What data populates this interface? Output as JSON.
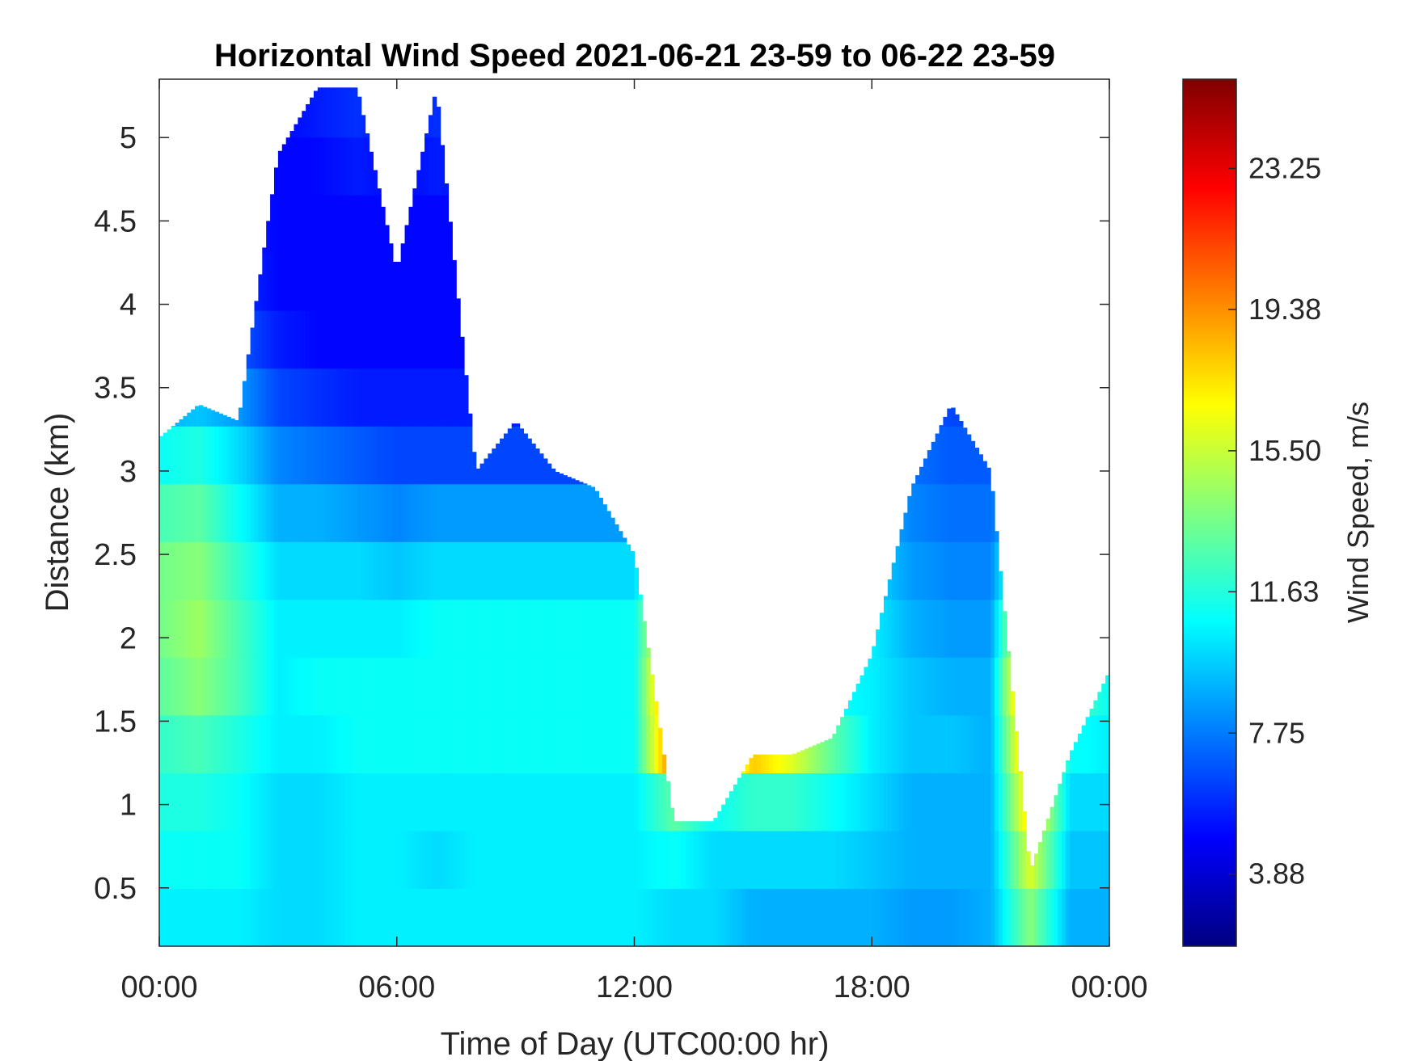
{
  "chart_data": {
    "type": "heatmap",
    "title": "Horizontal Wind Speed 2021-06-21 23-59 to 06-22 23-59",
    "xlabel": "Time of Day (UTC00:00 hr)",
    "ylabel": "Distance (km)",
    "colorbar_label": "Wind Speed, m/s",
    "x_ticks": [
      "00:00",
      "06:00",
      "12:00",
      "18:00",
      "00:00"
    ],
    "x_tick_hours": [
      0,
      6,
      12,
      18,
      24
    ],
    "xlim_hours": [
      0,
      24
    ],
    "y_ticks": [
      "0.5",
      "1",
      "1.5",
      "2",
      "2.5",
      "3",
      "3.5",
      "4",
      "4.5",
      "5"
    ],
    "y_tick_values": [
      0.5,
      1,
      1.5,
      2,
      2.5,
      3,
      3.5,
      4,
      4.5,
      5
    ],
    "ylim": [
      0.15,
      5.35
    ],
    "colorbar_ticks": [
      "3.88",
      "7.75",
      "11.63",
      "15.50",
      "19.38",
      "23.25"
    ],
    "colorbar_tick_values": [
      3.88,
      7.75,
      11.63,
      15.5,
      19.38,
      23.25
    ],
    "colorbar_range": [
      1.9,
      25.7
    ],
    "colormap": "jet",
    "missing_color": "#ffffff",
    "grid": false,
    "legend": "colorbar-right",
    "profiles": [
      {
        "hour": 0.0,
        "top_km": 3.2,
        "speed": [
          10.5,
          11,
          11.5,
          12,
          13,
          13.5,
          13.5,
          12.5,
          11,
          9,
          7.5,
          6.5,
          6,
          5.5,
          5
        ]
      },
      {
        "hour": 1.0,
        "top_km": 3.4,
        "speed": [
          10.5,
          11,
          11.5,
          12.5,
          14,
          14.5,
          14,
          13,
          11.5,
          9.5,
          7.5,
          6.5,
          6,
          5.5,
          5
        ]
      },
      {
        "hour": 2.0,
        "top_km": 3.3,
        "speed": [
          10.5,
          11,
          11,
          11.5,
          12.5,
          12.5,
          12,
          11,
          10,
          8.5,
          7,
          6,
          5.5,
          5,
          5
        ]
      },
      {
        "hour": 3.0,
        "top_km": 4.9,
        "speed": [
          10,
          10,
          10,
          10.5,
          10.5,
          10.5,
          10,
          9,
          8,
          6.5,
          5.5,
          5,
          5,
          5,
          5
        ]
      },
      {
        "hour": 4.0,
        "top_km": 5.3,
        "speed": [
          10,
          10,
          10,
          10.5,
          11,
          10.5,
          10,
          9,
          7.5,
          6,
          5,
          5,
          5,
          5,
          5.5
        ]
      },
      {
        "hour": 5.0,
        "top_km": 5.3,
        "speed": [
          10.5,
          10.5,
          10.5,
          11,
          11,
          10.5,
          10,
          8.5,
          7,
          5.5,
          5,
          5,
          5,
          5.5,
          6
        ]
      },
      {
        "hour": 6.0,
        "top_km": 4.2,
        "speed": [
          10.5,
          10.5,
          10.5,
          11,
          11,
          10.5,
          9.5,
          8,
          6.5,
          5.5,
          5,
          5,
          5,
          5,
          5
        ]
      },
      {
        "hour": 7.0,
        "top_km": 5.3,
        "speed": [
          10.5,
          10,
          10.5,
          11,
          11,
          11,
          10,
          8.5,
          6.5,
          5.5,
          5,
          5,
          5,
          5.5,
          6
        ]
      },
      {
        "hour": 8.0,
        "top_km": 3.0,
        "speed": [
          10.5,
          10.5,
          10.5,
          11,
          11,
          11,
          10,
          8.5,
          6.5,
          5.5,
          5,
          5,
          5,
          5,
          5
        ]
      },
      {
        "hour": 9.0,
        "top_km": 3.3,
        "speed": [
          10.5,
          10.5,
          10.5,
          11,
          11,
          11,
          10,
          8.5,
          6.5,
          5.5,
          5,
          5,
          5,
          5,
          5
        ]
      },
      {
        "hour": 10.0,
        "top_km": 3.0,
        "speed": [
          10.5,
          10.5,
          10.5,
          11,
          11,
          11,
          10,
          8.5,
          6.5,
          5.5,
          5,
          5,
          5,
          5,
          5
        ]
      },
      {
        "hour": 11.0,
        "top_km": 2.9,
        "speed": [
          10.5,
          10.5,
          10.5,
          11,
          11,
          11,
          10,
          8.5,
          6.5,
          5.5,
          5,
          5,
          5,
          5,
          5
        ]
      },
      {
        "hour": 12.0,
        "top_km": 2.5,
        "speed": [
          10.5,
          10.5,
          10.5,
          11,
          11,
          11,
          10,
          8.5,
          6.5,
          5.5,
          5,
          5,
          5,
          5,
          5
        ]
      },
      {
        "hour": 13.0,
        "top_km": 0.9,
        "speed": [
          10,
          11,
          13,
          21,
          22,
          20,
          18,
          16,
          14,
          12,
          10,
          9,
          8,
          8,
          8
        ]
      },
      {
        "hour": 14.0,
        "top_km": 0.9,
        "speed": [
          10,
          10,
          11,
          12.5,
          20,
          21,
          19,
          17,
          14,
          12,
          10,
          9,
          8,
          8,
          8
        ]
      },
      {
        "hour": 15.0,
        "top_km": 1.3,
        "speed": [
          9,
          10,
          12,
          18,
          12,
          13,
          21,
          22,
          17,
          14,
          12,
          10,
          9,
          8,
          8
        ]
      },
      {
        "hour": 16.0,
        "top_km": 1.3,
        "speed": [
          9,
          10,
          12,
          16,
          20,
          22,
          12,
          14,
          22,
          21,
          18,
          14,
          12,
          10,
          9
        ]
      },
      {
        "hour": 17.0,
        "top_km": 1.4,
        "speed": [
          9,
          10,
          11,
          13,
          11,
          12,
          14,
          16,
          22,
          22,
          20,
          16,
          12,
          10,
          9
        ]
      },
      {
        "hour": 18.0,
        "top_km": 1.9,
        "speed": [
          9,
          9.5,
          10,
          10.5,
          10.5,
          10.5,
          10,
          9.5,
          9,
          8.5,
          8,
          7.5,
          7,
          6.5,
          6
        ]
      },
      {
        "hour": 19.0,
        "top_km": 2.9,
        "speed": [
          8.5,
          9,
          9,
          9.5,
          9.5,
          9,
          8.5,
          8,
          7.5,
          7,
          6.5,
          6,
          6,
          6,
          6
        ]
      },
      {
        "hour": 20.0,
        "top_km": 3.4,
        "speed": [
          8.5,
          9,
          9,
          9.5,
          9,
          8.5,
          8,
          7.5,
          7,
          6.5,
          6,
          6,
          6,
          6,
          6
        ]
      },
      {
        "hour": 21.0,
        "top_km": 3.0,
        "speed": [
          9,
          9,
          9,
          9,
          9,
          8.5,
          8,
          7.5,
          7,
          6.5,
          6,
          6,
          6,
          6,
          6
        ]
      },
      {
        "hour": 22.0,
        "top_km": 0.6,
        "speed": [
          14,
          16,
          18,
          20,
          22,
          20,
          16,
          12,
          10,
          9,
          8,
          8,
          8,
          8,
          8
        ]
      },
      {
        "hour": 23.0,
        "top_km": 1.3,
        "speed": [
          9,
          9.5,
          10,
          11,
          13,
          16,
          20,
          22,
          21,
          18,
          15,
          12,
          10,
          9,
          9
        ]
      },
      {
        "hour": 24.0,
        "top_km": 1.8,
        "speed": [
          9,
          9.5,
          10,
          10.5,
          11,
          12,
          13,
          14,
          17,
          21,
          22,
          19,
          14,
          11,
          10
        ]
      }
    ]
  }
}
